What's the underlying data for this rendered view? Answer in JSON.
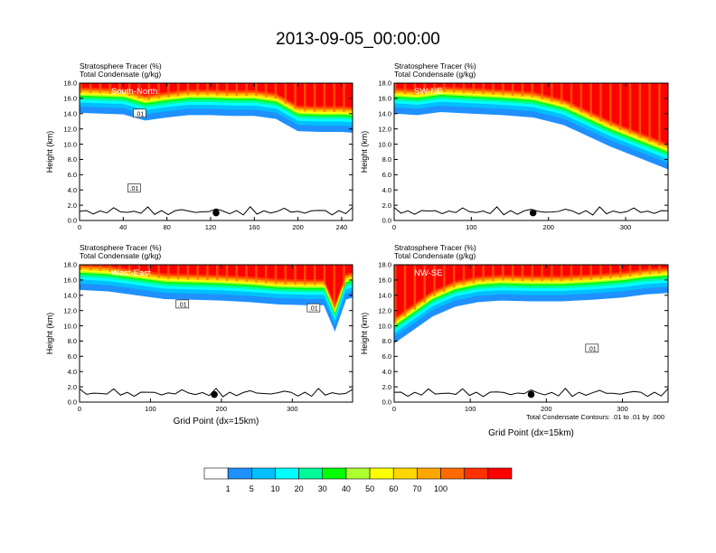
{
  "figure": {
    "title": "2013-09-05_00:00:00",
    "contour_note": "Total Condensate Contours: .01 to .01 by .000"
  },
  "colorbar": {
    "colors": [
      "#ffffff",
      "#1e90ff",
      "#00bfff",
      "#00ffff",
      "#00fa9a",
      "#00ff00",
      "#adff2f",
      "#ffff00",
      "#ffd700",
      "#ffa500",
      "#ff6a00",
      "#ff3000",
      "#ff0000"
    ],
    "labels": [
      "1",
      "5",
      "10",
      "20",
      "30",
      "40",
      "50",
      "60",
      "70",
      "100"
    ]
  },
  "chart_data": [
    {
      "type": "contour",
      "panel_label": "South-North",
      "field_labels": [
        "Stratosphere Tracer   (%)",
        "Total Condensate   (g/kg)"
      ],
      "xlabel": "",
      "ylabel": "Height (km)",
      "xlim": [
        0,
        250
      ],
      "xticks": [
        0,
        40,
        80,
        120,
        160,
        200,
        240
      ],
      "ylim": [
        0,
        18
      ],
      "yticks": [
        "0.0",
        "2.0",
        "4.0",
        "6.0",
        "8.0",
        "10.0",
        "12.0",
        "14.0",
        "16.0",
        "18.0"
      ],
      "tropopause": {
        "x": [
          0,
          20,
          40,
          60,
          80,
          100,
          120,
          140,
          160,
          180,
          200,
          220,
          240,
          250
        ],
        "y": [
          14.2,
          14.1,
          14.0,
          13.2,
          13.6,
          13.9,
          13.9,
          13.8,
          13.8,
          13.4,
          11.8,
          11.7,
          11.7,
          11.6
        ]
      },
      "marker": {
        "x": 125,
        "y": 1.0
      },
      "contour_labels": [
        {
          "x": 55,
          "y": 14.0,
          "text": ".01"
        },
        {
          "x": 50,
          "y": 4.2,
          "text": ".01"
        }
      ]
    },
    {
      "type": "contour",
      "panel_label": "SW-NE",
      "field_labels": [
        "Stratosphere Tracer   (%)",
        "Total Condensate   (g/kg)"
      ],
      "xlabel": "",
      "ylabel": "Height (km)",
      "xlim": [
        0,
        355
      ],
      "xticks": [
        0,
        100,
        200,
        300
      ],
      "ylim": [
        0,
        18
      ],
      "yticks": [
        "0.0",
        "2.0",
        "4.0",
        "6.0",
        "8.0",
        "10.0",
        "12.0",
        "14.0",
        "16.0",
        "18.0"
      ],
      "tropopause": {
        "x": [
          0,
          30,
          60,
          100,
          140,
          180,
          220,
          250,
          280,
          310,
          340,
          355
        ],
        "y": [
          14.1,
          13.9,
          14.3,
          14.1,
          13.9,
          13.6,
          12.6,
          11.2,
          9.8,
          8.6,
          7.4,
          6.8
        ]
      },
      "marker": {
        "x": 180,
        "y": 1.0
      },
      "contour_labels": []
    },
    {
      "type": "contour",
      "panel_label": "West-East",
      "field_labels": [
        "Stratosphere Tracer   (%)",
        "Total Condensate   (g/kg)"
      ],
      "xlabel": "Grid Point (dx=15km)",
      "ylabel": "Height (km)",
      "xlim": [
        0,
        385
      ],
      "xticks": [
        0,
        100,
        200,
        300
      ],
      "ylim": [
        0,
        18
      ],
      "yticks": [
        "0.0",
        "2.0",
        "4.0",
        "6.0",
        "8.0",
        "10.0",
        "12.0",
        "14.0",
        "16.0",
        "18.0"
      ],
      "tropopause": {
        "x": [
          0,
          40,
          80,
          120,
          160,
          200,
          240,
          280,
          320,
          345,
          360,
          375,
          385
        ],
        "y": [
          14.8,
          14.6,
          14.1,
          13.6,
          13.5,
          13.4,
          13.2,
          12.9,
          12.8,
          12.8,
          9.5,
          13.5,
          13.8
        ]
      },
      "marker": {
        "x": 190,
        "y": 1.0
      },
      "contour_labels": [
        {
          "x": 145,
          "y": 12.8,
          "text": ".01"
        },
        {
          "x": 330,
          "y": 12.3,
          "text": ".01"
        }
      ]
    },
    {
      "type": "contour",
      "panel_label": "NW-SE",
      "field_labels": [
        "Stratosphere Tracer   (%)",
        "Total Condensate   (g/kg)"
      ],
      "xlabel": "Grid Point (dx=15km)",
      "ylabel": "Height (km)",
      "xlim": [
        0,
        360
      ],
      "xticks": [
        0,
        100,
        200,
        300
      ],
      "ylim": [
        0,
        18
      ],
      "yticks": [
        "0.0",
        "2.0",
        "4.0",
        "6.0",
        "8.0",
        "10.0",
        "12.0",
        "14.0",
        "16.0",
        "18.0"
      ],
      "tropopause": {
        "x": [
          0,
          20,
          50,
          80,
          110,
          140,
          180,
          220,
          260,
          300,
          330,
          360
        ],
        "y": [
          7.8,
          9.2,
          11.3,
          12.6,
          13.2,
          13.4,
          13.3,
          13.3,
          13.5,
          13.8,
          14.2,
          14.4
        ]
      },
      "marker": {
        "x": 180,
        "y": 1.0
      },
      "contour_labels": [
        {
          "x": 260,
          "y": 7.0,
          "text": ".01"
        }
      ]
    }
  ]
}
